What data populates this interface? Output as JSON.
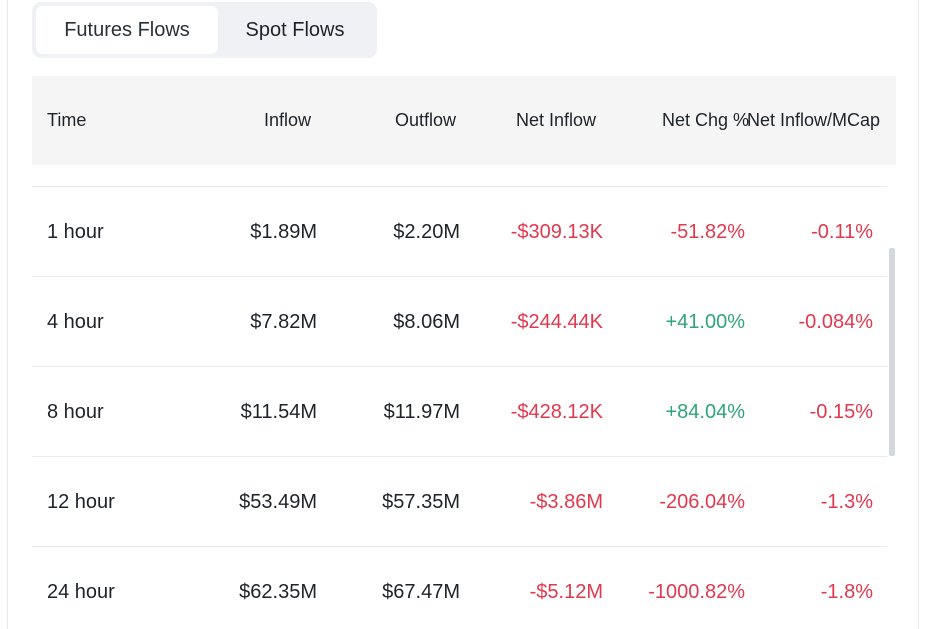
{
  "tabs": {
    "futures_label": "Futures Flows",
    "spot_label": "Spot Flows"
  },
  "table": {
    "headers": {
      "time": "Time",
      "inflow": "Inflow",
      "outflow": "Outflow",
      "net_inflow": "Net Inflow",
      "net_chg": "Net Chg %",
      "net_inflow_mcap": "Net Inflow/MCap"
    },
    "rows": [
      {
        "time": "1 hour",
        "inflow": "$1.89M",
        "outflow": "$2.20M",
        "net_inflow": "-$309.13K",
        "net_chg": "-51.82%",
        "net_inflow_mcap": "-0.11%"
      },
      {
        "time": "4 hour",
        "inflow": "$7.82M",
        "outflow": "$8.06M",
        "net_inflow": "-$244.44K",
        "net_chg": "+41.00%",
        "net_inflow_mcap": "-0.084%"
      },
      {
        "time": "8 hour",
        "inflow": "$11.54M",
        "outflow": "$11.97M",
        "net_inflow": "-$428.12K",
        "net_chg": "+84.04%",
        "net_inflow_mcap": "-0.15%"
      },
      {
        "time": "12 hour",
        "inflow": "$53.49M",
        "outflow": "$57.35M",
        "net_inflow": "-$3.86M",
        "net_chg": "-206.04%",
        "net_inflow_mcap": "-1.3%"
      },
      {
        "time": "24 hour",
        "inflow": "$62.35M",
        "outflow": "$67.47M",
        "net_inflow": "-$5.12M",
        "net_chg": "-1000.82%",
        "net_inflow_mcap": "-1.8%"
      }
    ]
  },
  "colors": {
    "negative": "#e0394f",
    "positive": "#2ea578",
    "header_bg": "#f5f5f5",
    "tab_bg": "#f0f1f4"
  }
}
